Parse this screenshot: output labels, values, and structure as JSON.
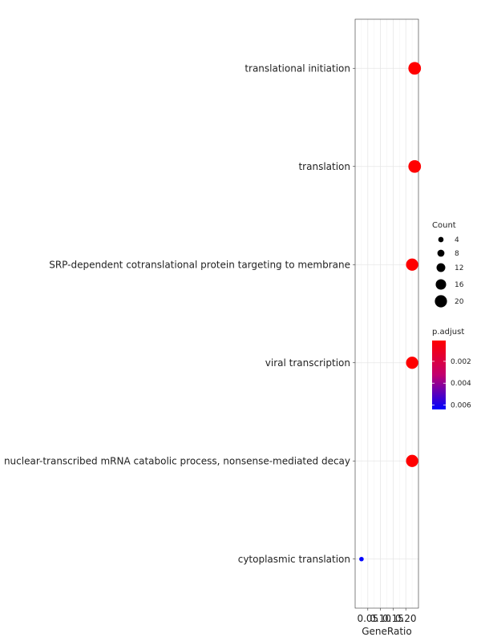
{
  "chart_data": {
    "type": "scatter",
    "xlabel": "GeneRatio",
    "ylabel": "",
    "x_ticks": [
      "0.05",
      "0.10",
      "0.15",
      "0.20"
    ],
    "xlim": [
      0.0,
      0.25
    ],
    "grid": true,
    "legend_position": "right",
    "points": [
      {
        "term": "translational initiation",
        "gene_ratio": 0.235,
        "count": 21,
        "p_adjust": 0.0001
      },
      {
        "term": "translation",
        "gene_ratio": 0.235,
        "count": 21,
        "p_adjust": 0.0001
      },
      {
        "term": "SRP-dependent cotranslational protein targeting to membrane",
        "gene_ratio": 0.225,
        "count": 20,
        "p_adjust": 0.0001
      },
      {
        "term": "viral transcription",
        "gene_ratio": 0.225,
        "count": 20,
        "p_adjust": 0.0001
      },
      {
        "term": "nuclear-transcribed mRNA catabolic process, nonsense-mediated decay",
        "gene_ratio": 0.225,
        "count": 20,
        "p_adjust": 0.0001
      },
      {
        "term": "cytoplasmic translation",
        "gene_ratio": 0.025,
        "count": 2,
        "p_adjust": 0.0064
      }
    ],
    "size_legend": {
      "title": "Count",
      "values": [
        4,
        8,
        12,
        16,
        20
      ]
    },
    "color_legend": {
      "title": "p.adjust",
      "ticks": [
        "0.002",
        "0.004",
        "0.006"
      ],
      "tick_values": [
        0.002,
        0.004,
        0.006
      ],
      "range": [
        0.0001,
        0.0064
      ],
      "low_color": "#ff0000",
      "high_color": "#0000ff"
    }
  }
}
